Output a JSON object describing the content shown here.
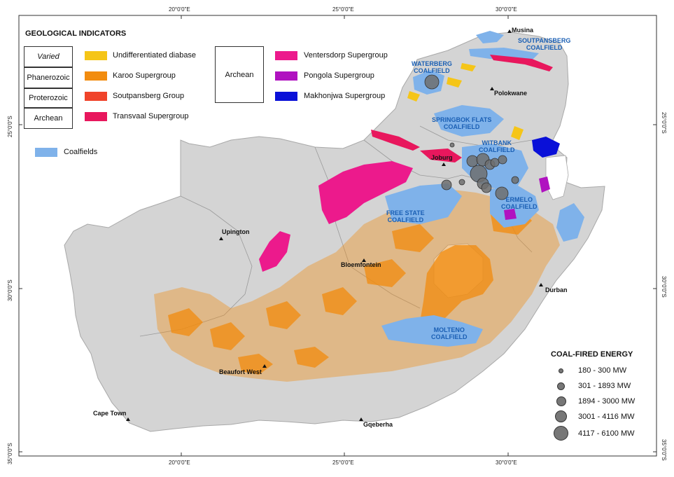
{
  "graticule": {
    "top_ticks": [
      "20°0'0\"E",
      "25°0'0\"E",
      "30°0'0\"E"
    ],
    "bottom_ticks": [
      "20°0'0\"E",
      "25°0'0\"E",
      "30°0'0\"E"
    ],
    "left_ticks": [
      "25°0'0\"S",
      "30°0'0\"S",
      "35°0'0\"S"
    ],
    "right_ticks": [
      "25°0'0\"S",
      "30°0'0\"S",
      "35°0'0\"S"
    ]
  },
  "legend": {
    "title": "GEOLOGICAL INDICATORS",
    "eras": {
      "varied": "Varied",
      "phanerozoic": "Phanerozoic",
      "proterozoic": "Proterozoic",
      "archean": "Archean",
      "archean_group": "Archean"
    },
    "items": {
      "diabase": {
        "label": "Undifferentiated diabase",
        "color": "#f5c518"
      },
      "karoo": {
        "label": "Karoo Supergroup",
        "color": "#f28c0f"
      },
      "soutpansberg": {
        "label": "Soutpansberg Group",
        "color": "#f0432a"
      },
      "transvaal": {
        "label": "Transvaal Supergroup",
        "color": "#e8175d"
      },
      "ventersdorp": {
        "label": "Ventersdorp Supergroup",
        "color": "#ec1a8c"
      },
      "pongola": {
        "label": "Pongola Supergroup",
        "color": "#b012c0"
      },
      "makhonjwa": {
        "label": "Makhonjwa Supergroup",
        "color": "#0a10d8"
      },
      "coalfields": {
        "label": "Coalfields",
        "color": "#7fb2ea"
      }
    }
  },
  "cities": {
    "musina": "Musina",
    "polokwane": "Polokwane",
    "joburg": "Joburg",
    "upington": "Upington",
    "bloemfontein": "Bloemfontein",
    "durban": "Durban",
    "beaufort_west": "Beaufort West",
    "cape_town": "Cape Town",
    "gqeberha": "Gqeberha"
  },
  "coalfields": {
    "waterberg": [
      "WATERBERG",
      "COALFIELD"
    ],
    "soutpansberg": [
      "SOUTPANSBERG",
      "COALFIELD"
    ],
    "springbok": [
      "SPRINGBOK FLATS",
      "COALFIELD"
    ],
    "witbank": [
      "WITBANK",
      "COALFIELD"
    ],
    "ermelo": [
      "ERMELO",
      "COALFIELD"
    ],
    "free_state": [
      "FREE STATE",
      "COALFIELD"
    ],
    "molteno": [
      "MOLTENO",
      "COALFIELD"
    ]
  },
  "energy_legend": {
    "title": "COAL-FIRED ENERGY",
    "classes": [
      {
        "label": "180 - 300 MW"
      },
      {
        "label": "301 - 1893 MW"
      },
      {
        "label": "1894 - 3000 MW"
      },
      {
        "label": "3001 - 4116 MW"
      },
      {
        "label": "4117 - 6100 MW"
      }
    ]
  },
  "colors": {
    "land": "#d4d4d4",
    "land_stroke": "#b8b8b8",
    "power_station": "#6e6e6e",
    "coal_label": "#1a5fb4"
  }
}
